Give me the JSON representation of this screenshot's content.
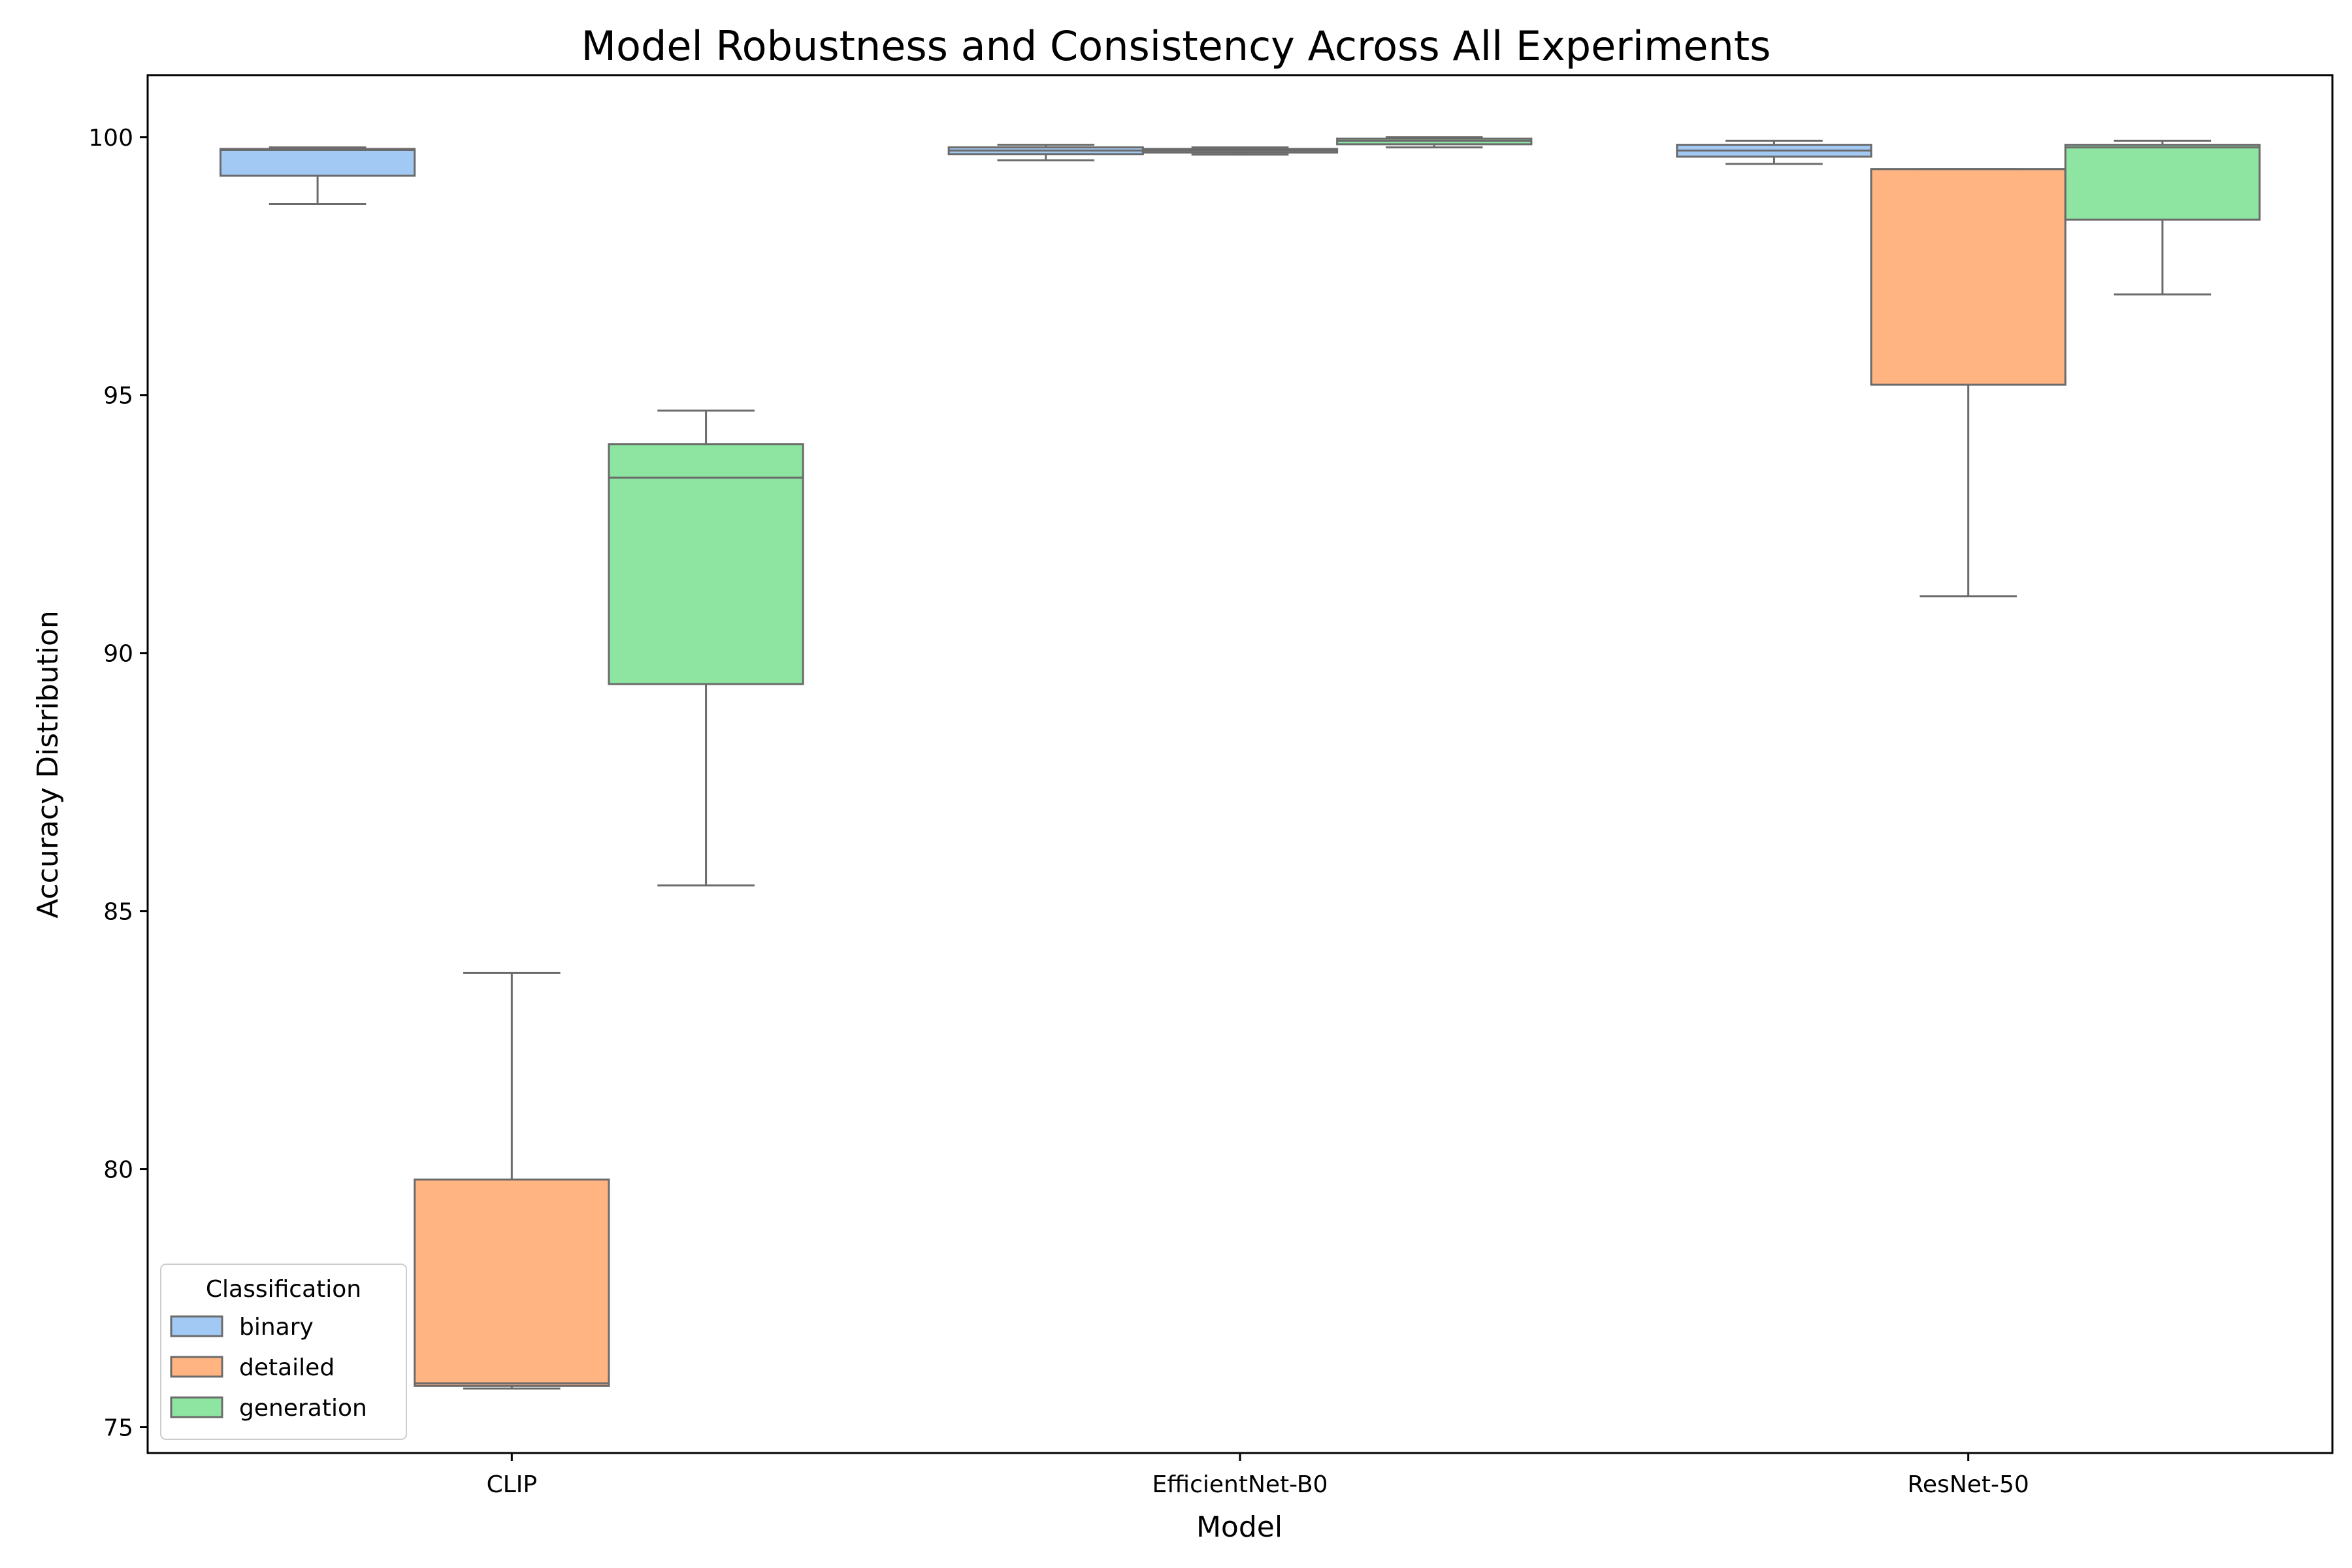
{
  "chart_data": {
    "type": "box",
    "title": "Model Robustness and Consistency Across All Experiments",
    "xlabel": "Model",
    "ylabel": "Accuracy Distribution",
    "categories": [
      "CLIP",
      "EfficientNet-B0",
      "ResNet-50"
    ],
    "ylim": [
      74.5,
      101.2
    ],
    "yticks": [
      75,
      80,
      85,
      90,
      95,
      100
    ],
    "grid": false,
    "legend": {
      "title": "Classification",
      "position": "lower-left"
    },
    "series": [
      {
        "name": "binary",
        "color": "#a1c9f4",
        "boxes": [
          {
            "whislo": 98.7,
            "q1": 99.25,
            "med": 99.75,
            "q3": 99.77,
            "whishi": 99.8
          },
          {
            "whislo": 99.55,
            "q1": 99.67,
            "med": 99.74,
            "q3": 99.8,
            "whishi": 99.85
          },
          {
            "whislo": 99.48,
            "q1": 99.62,
            "med": 99.74,
            "q3": 99.85,
            "whishi": 99.93
          }
        ]
      },
      {
        "name": "detailed",
        "color": "#ffb482",
        "boxes": [
          {
            "whislo": 75.75,
            "q1": 75.8,
            "med": 75.85,
            "q3": 79.8,
            "whishi": 83.8
          },
          {
            "whislo": 99.66,
            "q1": 99.7,
            "med": 99.74,
            "q3": 99.77,
            "whishi": 99.8
          },
          {
            "whislo": 91.1,
            "q1": 95.2,
            "med": 99.38,
            "q3": 99.38,
            "whishi": 99.38
          }
        ]
      },
      {
        "name": "generation",
        "color": "#8de5a1",
        "boxes": [
          {
            "whislo": 85.5,
            "q1": 89.4,
            "med": 93.4,
            "q3": 94.05,
            "whishi": 94.7
          },
          {
            "whislo": 99.8,
            "q1": 99.86,
            "med": 99.93,
            "q3": 99.97,
            "whishi": 100.0
          },
          {
            "whislo": 96.95,
            "q1": 98.4,
            "med": 99.8,
            "q3": 99.85,
            "whishi": 99.93
          }
        ]
      }
    ]
  }
}
